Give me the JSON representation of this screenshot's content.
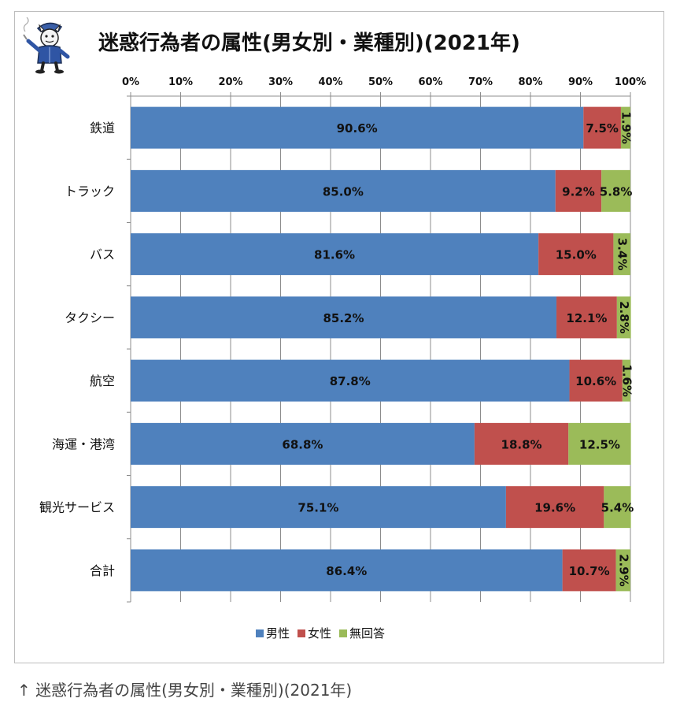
{
  "chart_data": {
    "type": "bar",
    "orientation": "horizontal",
    "stacked": "percent",
    "title": "迷惑行為者の属性(男女別・業種別)(2021年)",
    "categories": [
      "鉄道",
      "トラック",
      "バス",
      "タクシー",
      "航空",
      "海運・港湾",
      "観光サービス",
      "合計"
    ],
    "series": [
      {
        "name": "男性",
        "color": "#4f81bd",
        "values": [
          90.6,
          85.0,
          81.6,
          85.2,
          87.8,
          68.8,
          75.1,
          86.4
        ],
        "labels": [
          "90.6%",
          "85.0%",
          "81.6%",
          "85.2%",
          "87.8%",
          "68.8%",
          "75.1%",
          "86.4%"
        ]
      },
      {
        "name": "女性",
        "color": "#c0504d",
        "values": [
          7.5,
          9.2,
          15.0,
          12.1,
          10.6,
          18.8,
          19.6,
          10.7
        ],
        "labels": [
          "7.5%",
          "9.2%",
          "15.0%",
          "12.1%",
          "10.6%",
          "18.8%",
          "19.6%",
          "10.7%"
        ]
      },
      {
        "name": "無回答",
        "color": "#9bbb59",
        "values": [
          1.9,
          5.8,
          3.4,
          2.8,
          1.6,
          12.5,
          5.4,
          2.9
        ],
        "labels": [
          "1.9%",
          "5.8%",
          "3.4%",
          "2.8%",
          "1.6%",
          "12.5%",
          "5.4%",
          "2.9%"
        ]
      }
    ],
    "xlim": [
      0,
      100
    ],
    "xticks": [
      "0%",
      "10%",
      "20%",
      "30%",
      "40%",
      "50%",
      "60%",
      "70%",
      "80%",
      "90%",
      "100%"
    ],
    "axis_position": "top",
    "grid": true,
    "legend_position": "bottom"
  },
  "caption": "↑ 迷惑行為者の属性(男女別・業種別)(2021年)",
  "mascot_icon": "mascot-icon"
}
